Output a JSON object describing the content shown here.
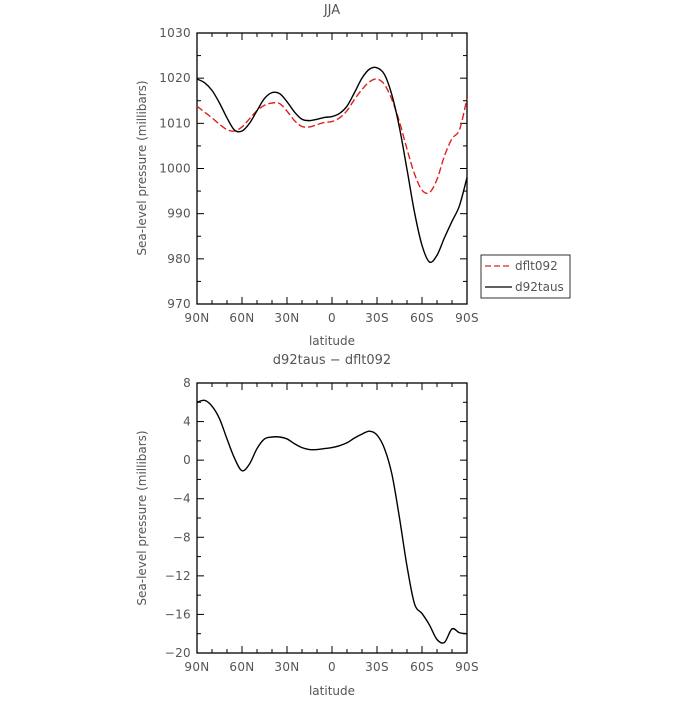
{
  "chart_data": [
    {
      "type": "line",
      "title": "JJA",
      "xlabel": "latitude",
      "ylabel": "Sea-level pressure (millibars)",
      "xlim": [
        90,
        -90
      ],
      "ylim": [
        970,
        1030
      ],
      "x_ticks": [
        90,
        60,
        30,
        0,
        -30,
        -60,
        -90
      ],
      "x_tick_labels": [
        "90N",
        "60N",
        "30N",
        "0",
        "30S",
        "60S",
        "90S"
      ],
      "y_ticks": [
        970,
        980,
        990,
        1000,
        1010,
        1020,
        1030
      ],
      "y_tick_labels": [
        "970",
        "980",
        "990",
        "1000",
        "1010",
        "1020",
        "1030"
      ],
      "legend_position": "right",
      "series": [
        {
          "name": "dflt092",
          "color": "#e02020",
          "dash": true,
          "x": [
            90,
            85,
            80,
            75,
            70,
            65,
            60,
            55,
            50,
            45,
            40,
            35,
            30,
            25,
            20,
            15,
            10,
            5,
            0,
            -5,
            -10,
            -15,
            -20,
            -25,
            -30,
            -35,
            -40,
            -45,
            -50,
            -55,
            -60,
            -65,
            -70,
            -75,
            -80,
            -85,
            -90
          ],
          "values": [
            1013.8,
            1012.5,
            1011.2,
            1009.8,
            1008.6,
            1008.3,
            1009.2,
            1011.0,
            1012.8,
            1014.0,
            1014.5,
            1014.4,
            1012.7,
            1010.6,
            1009.3,
            1009.2,
            1009.7,
            1010.2,
            1010.4,
            1011.2,
            1012.8,
            1015.3,
            1017.5,
            1019.2,
            1019.8,
            1018.6,
            1015.2,
            1010.3,
            1004.3,
            998.8,
            995.2,
            994.7,
            997.6,
            1002.8,
            1006.6,
            1008.6,
            1015.5
          ]
        },
        {
          "name": "d92taus",
          "color": "#000000",
          "dash": false,
          "x": [
            90,
            85,
            80,
            75,
            70,
            65,
            60,
            55,
            50,
            45,
            40,
            35,
            30,
            25,
            20,
            15,
            10,
            5,
            0,
            -5,
            -10,
            -15,
            -20,
            -25,
            -30,
            -35,
            -40,
            -45,
            -50,
            -55,
            -60,
            -65,
            -70,
            -75,
            -80,
            -85,
            -90
          ],
          "values": [
            1019.8,
            1019.0,
            1017.3,
            1014.5,
            1011.2,
            1008.5,
            1008.3,
            1010.0,
            1012.8,
            1015.5,
            1016.8,
            1016.6,
            1014.8,
            1012.5,
            1010.9,
            1010.6,
            1010.9,
            1011.3,
            1011.5,
            1012.2,
            1013.8,
            1016.8,
            1020.0,
            1022.0,
            1022.3,
            1020.8,
            1016.2,
            1009.0,
            999.8,
            990.3,
            983.0,
            979.3,
            980.8,
            984.7,
            988.3,
            991.8,
            998.0
          ]
        }
      ]
    },
    {
      "type": "line",
      "title": "d92taus − dflt092",
      "xlabel": "latitude",
      "ylabel": "Sea-level pressure (millibars)",
      "xlim": [
        90,
        -90
      ],
      "ylim": [
        -20,
        8
      ],
      "x_ticks": [
        90,
        60,
        30,
        0,
        -30,
        -60,
        -90
      ],
      "x_tick_labels": [
        "90N",
        "60N",
        "30N",
        "0",
        "30S",
        "60S",
        "90S"
      ],
      "y_ticks": [
        -20,
        -16,
        -12,
        -8,
        -4,
        0,
        4,
        8
      ],
      "y_tick_labels": [
        "−20",
        "−16",
        "−12",
        "−8",
        "−4",
        "0",
        "4",
        "8"
      ],
      "series": [
        {
          "color": "#000000",
          "dash": false,
          "x": [
            90,
            85,
            80,
            75,
            70,
            65,
            60,
            55,
            50,
            45,
            40,
            35,
            30,
            25,
            20,
            15,
            10,
            5,
            0,
            -5,
            -10,
            -15,
            -20,
            -25,
            -30,
            -35,
            -40,
            -45,
            -50,
            -55,
            -60,
            -65,
            -70,
            -75,
            -80,
            -85,
            -90
          ],
          "values": [
            6.0,
            6.2,
            5.6,
            4.3,
            2.2,
            0.2,
            -1.1,
            -0.4,
            1.2,
            2.2,
            2.4,
            2.4,
            2.2,
            1.7,
            1.3,
            1.1,
            1.1,
            1.2,
            1.3,
            1.5,
            1.8,
            2.3,
            2.7,
            3.0,
            2.6,
            1.2,
            -1.5,
            -6.0,
            -11.0,
            -14.9,
            -15.9,
            -17.1,
            -18.6,
            -18.9,
            -17.5,
            -17.9,
            -18.0
          ]
        }
      ]
    }
  ]
}
